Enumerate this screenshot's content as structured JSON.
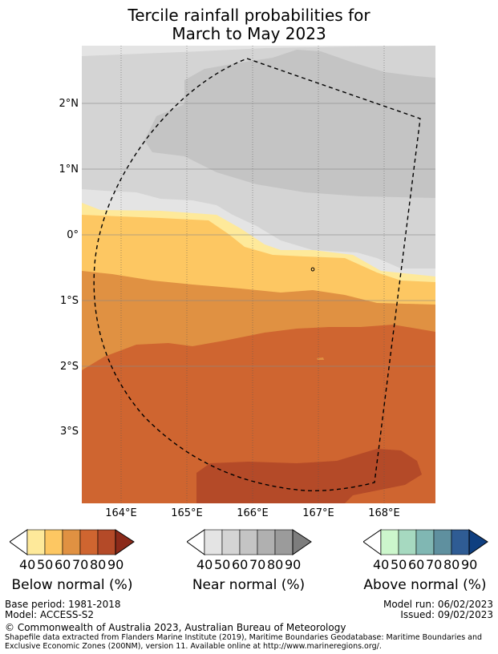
{
  "title": {
    "line1": "Tercile rainfall probabilities for",
    "line2": "March to May 2023"
  },
  "map": {
    "lat_labels": [
      "2°N",
      "1°N",
      "0°",
      "1°S",
      "2°S",
      "3°S"
    ],
    "lon_labels": [
      "164°E",
      "165°E",
      "166°E",
      "167°E",
      "168°E"
    ],
    "colors": {
      "below": [
        "#fee99a",
        "#fdc762",
        "#e09142",
        "#cf6530",
        "#b44a28",
        "#8b2a1a"
      ],
      "near": [
        "#e4e4e4",
        "#d4d4d4",
        "#c4c4c4",
        "#b0b0b0",
        "#9b9b9b",
        "#7d7d7d"
      ],
      "above": [
        "#ccf6cc",
        "#a6d9c0",
        "#80b7b3",
        "#5f909f",
        "#2f5c94",
        "#0f3f80"
      ]
    }
  },
  "colorbars": [
    {
      "title": "Below normal (%)",
      "ticks": [
        "40",
        "50",
        "60",
        "70",
        "80",
        "90"
      ]
    },
    {
      "title": "Near normal (%)",
      "ticks": [
        "40",
        "50",
        "60",
        "70",
        "80",
        "90"
      ]
    },
    {
      "title": "Above normal (%)",
      "ticks": [
        "40",
        "50",
        "60",
        "70",
        "80",
        "90"
      ]
    }
  ],
  "footer": {
    "base_period": "Base period: 1981-2018",
    "model": "Model: ACCESS-S2",
    "model_run": "Model run: 06/02/2023",
    "issued": "Issued: 09/02/2023",
    "copyright": "© Commonwealth of Australia 2023, Australian Bureau of Meteorology",
    "shapefile_1": "Shapefile data extracted from Flanders Marine Institute (2019), Maritime Boundaries Geodatabase: Maritime Boundaries and",
    "shapefile_2": "Exclusive Economic Zones (200NM), version 11. Available online at http://www.marineregions.org/."
  }
}
